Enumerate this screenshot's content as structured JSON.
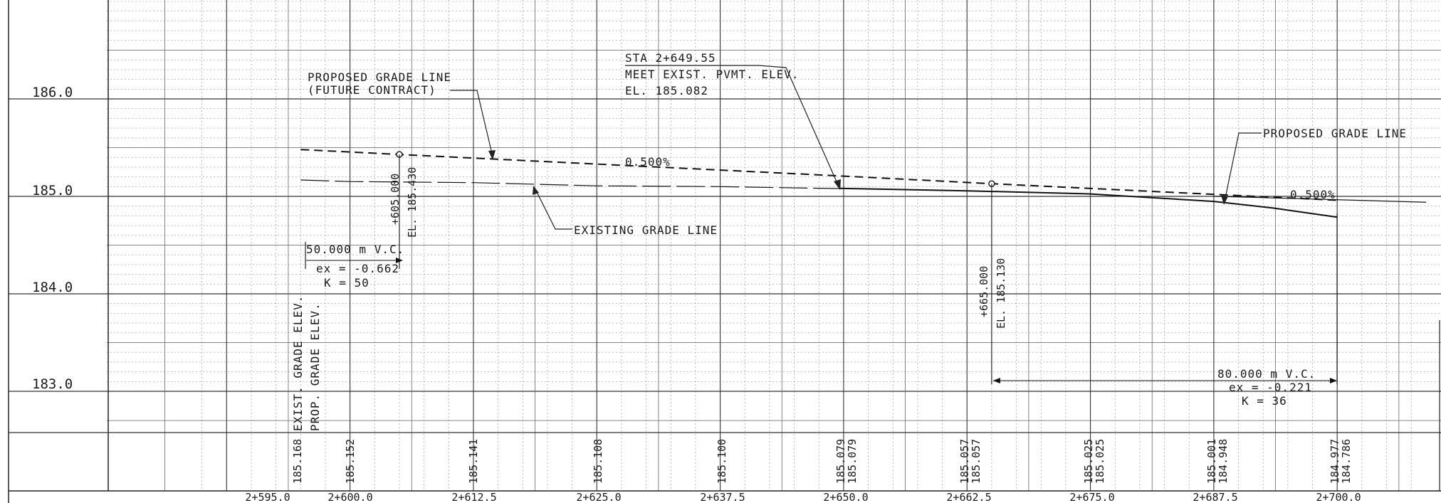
{
  "elevation_labels": [
    {
      "value": 186.0,
      "text": "186.0"
    },
    {
      "value": 185.0,
      "text": "185.0"
    },
    {
      "value": 184.0,
      "text": "184.0"
    },
    {
      "value": 183.0,
      "text": "183.0"
    }
  ],
  "station_labels": [
    {
      "station": 595.0,
      "text": "2+595.0"
    },
    {
      "station": 600.0,
      "text": "2+600.0"
    },
    {
      "station": 612.5,
      "text": "2+612.5"
    },
    {
      "station": 625.0,
      "text": "2+625.0"
    },
    {
      "station": 637.5,
      "text": "2+637.5"
    },
    {
      "station": 650.0,
      "text": "2+650.0"
    },
    {
      "station": 662.5,
      "text": "2+662.5"
    },
    {
      "station": 675.0,
      "text": "2+675.0"
    },
    {
      "station": 687.5,
      "text": "2+687.5"
    },
    {
      "station": 700.0,
      "text": "2+700.0"
    }
  ],
  "row_labels": {
    "existing": "EXIST. GRADE ELEV.",
    "proposed": "PROP. GRADE ELEV."
  },
  "elevation_values": [
    {
      "station": 595.0,
      "existing": "185.168",
      "proposed": ""
    },
    {
      "station": 600.0,
      "existing": "",
      "proposed": "185.152"
    },
    {
      "station": 612.5,
      "existing": "",
      "proposed": "185.141"
    },
    {
      "station": 625.0,
      "existing": "",
      "proposed": "185.108"
    },
    {
      "station": 637.5,
      "existing": "",
      "proposed": "185.100"
    },
    {
      "station": 650.0,
      "existing": "185.079",
      "proposed": "185.079"
    },
    {
      "station": 662.5,
      "existing": "185.057",
      "proposed": "185.057"
    },
    {
      "station": 675.0,
      "existing": "185.025",
      "proposed": "185.025"
    },
    {
      "station": 687.5,
      "existing": "185.001",
      "proposed": "184.948"
    },
    {
      "station": 700.0,
      "existing": "184.977",
      "proposed": "184.786"
    }
  ],
  "annotations": {
    "future_grade": {
      "line1": "PROPOSED GRADE LINE",
      "line2": "(FUTURE CONTRACT)"
    },
    "meet_existing": {
      "line1": "STA 2+649.55",
      "line2": "MEET EXIST. PVMT. ELEV.",
      "line3": "EL. 185.082"
    },
    "proposed_grade": "PROPOSED GRADE LINE",
    "existing_grade": "EXISTING GRADE LINE",
    "grade_left": "0.500%",
    "grade_right": "0.500%"
  },
  "pvi_1": {
    "station": 605.0,
    "elevation": 185.43,
    "station_text": "+605.000",
    "elevation_text": "EL. 185.430",
    "vc_text": "50.000 m  V.C.",
    "ex_text": "ex = -0.662",
    "k_text": "K = 50"
  },
  "pvi_2": {
    "station": 665.0,
    "elevation": 185.13,
    "station_text": "+665.000",
    "elevation_text": "EL. 185.130",
    "vc_text": "80.000 m  V.C.",
    "ex_text": "ex = -0.221",
    "k_text": "K = 36"
  },
  "chart_data": {
    "type": "line",
    "x_range": [
      585,
      709
    ],
    "y_range": [
      182.5,
      186.6
    ],
    "series": [
      {
        "name": "PROPOSED GRADE LINE (FUTURE CONTRACT)",
        "style": "dashed",
        "x": [
          595.0,
          605.0,
          649.55,
          665.0,
          700.0
        ],
        "y": [
          185.48,
          185.43,
          185.21,
          185.13,
          184.96
        ]
      },
      {
        "name": "EXISTING GRADE LINE",
        "style": "dash-long",
        "x": [
          595.0,
          600.0,
          612.5,
          625.0,
          637.5,
          650.0
        ],
        "y": [
          185.168,
          185.152,
          185.141,
          185.108,
          185.1,
          185.079
        ]
      },
      {
        "name": "PROPOSED GRADE LINE",
        "style": "solid",
        "x": [
          649.55,
          662.5,
          675.0,
          687.5,
          693.5,
          700.0
        ],
        "y": [
          185.082,
          185.057,
          185.025,
          184.948,
          184.88,
          184.786
        ]
      }
    ],
    "grade_extension": {
      "x": [
        687.5,
        709.0
      ],
      "y": [
        185.001,
        184.94
      ]
    }
  }
}
